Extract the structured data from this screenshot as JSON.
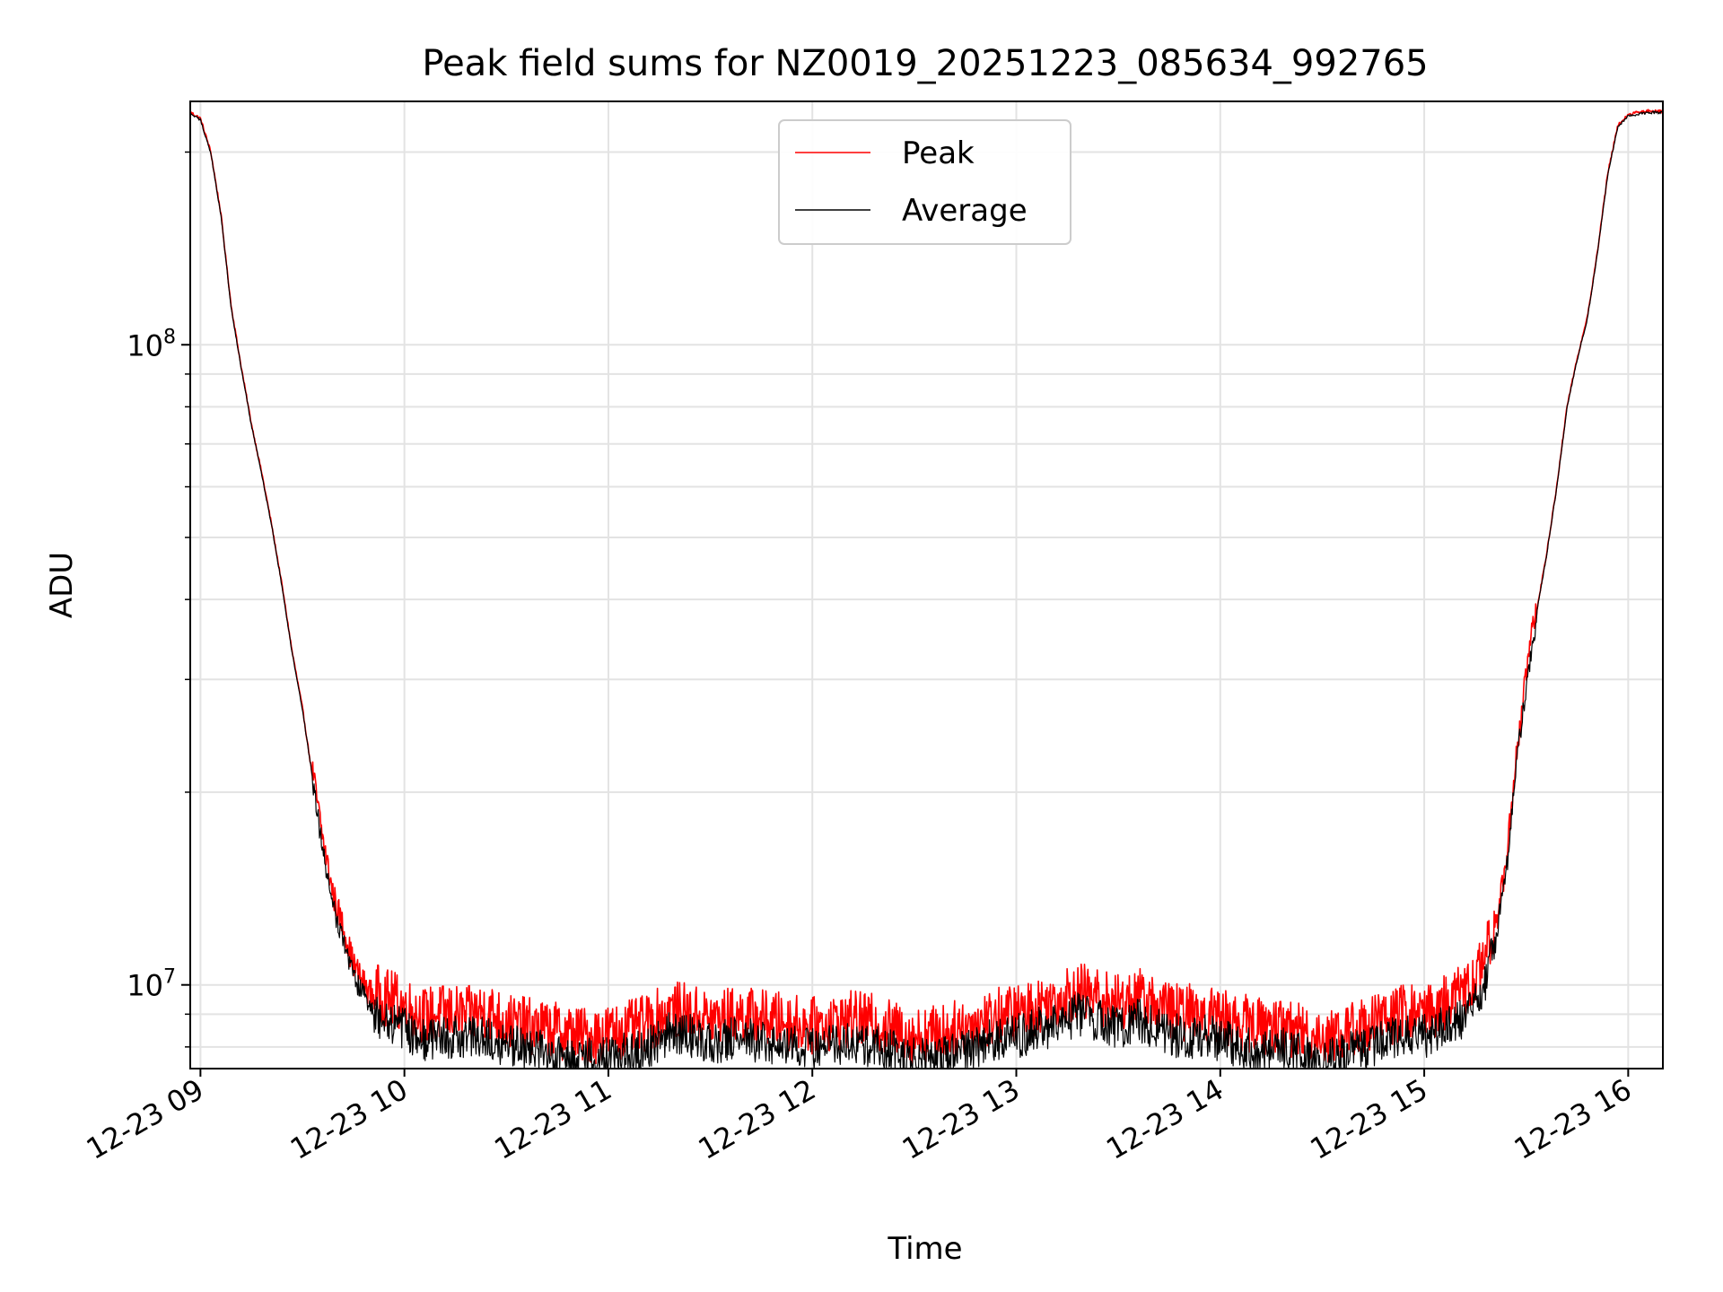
{
  "chart_data": {
    "type": "line",
    "title": "Peak field sums for NZ0019_20251223_085634_992765",
    "xlabel": "Time",
    "ylabel": "ADU",
    "yscale": "log",
    "ylim": [
      7400000,
      240000000
    ],
    "xlim": [
      8.95,
      16.17
    ],
    "grid": true,
    "legend_position": "upper center",
    "x_ticks": [
      {
        "value": 9,
        "label": "12-23 09"
      },
      {
        "value": 10,
        "label": "12-23 10"
      },
      {
        "value": 11,
        "label": "12-23 11"
      },
      {
        "value": 12,
        "label": "12-23 12"
      },
      {
        "value": 13,
        "label": "12-23 13"
      },
      {
        "value": 14,
        "label": "12-23 14"
      },
      {
        "value": 15,
        "label": "12-23 15"
      },
      {
        "value": 16,
        "label": "12-23 16"
      }
    ],
    "y_major_ticks": [
      {
        "value": 10000000,
        "base": "10",
        "exp": "7"
      },
      {
        "value": 100000000,
        "base": "10",
        "exp": "8"
      }
    ],
    "y_minor_ticks": [
      8000000,
      9000000,
      20000000,
      30000000,
      40000000,
      50000000,
      60000000,
      70000000,
      80000000,
      90000000,
      200000000
    ],
    "series": [
      {
        "name": "Peak",
        "color": "#ff0000",
        "noise": 0.09,
        "bias": 0.045,
        "x": [
          8.95,
          9.0,
          9.05,
          9.1,
          9.15,
          9.2,
          9.25,
          9.3,
          9.35,
          9.4,
          9.45,
          9.5,
          9.55,
          9.6,
          9.65,
          9.7,
          9.75,
          9.8,
          9.85,
          9.9,
          9.95,
          10.0,
          10.1,
          10.2,
          10.3,
          10.4,
          10.5,
          10.6,
          10.7,
          10.8,
          10.9,
          11.0,
          11.1,
          11.2,
          11.3,
          11.4,
          11.5,
          11.6,
          11.7,
          11.8,
          11.9,
          12.0,
          12.1,
          12.2,
          12.3,
          12.4,
          12.5,
          12.6,
          12.7,
          12.8,
          12.9,
          13.0,
          13.1,
          13.2,
          13.3,
          13.4,
          13.5,
          13.6,
          13.7,
          13.8,
          13.9,
          14.0,
          14.1,
          14.2,
          14.3,
          14.4,
          14.5,
          14.6,
          14.7,
          14.8,
          14.9,
          15.0,
          15.05,
          15.1,
          15.15,
          15.2,
          15.25,
          15.3,
          15.35,
          15.4,
          15.45,
          15.5,
          15.55,
          15.6,
          15.65,
          15.7,
          15.75,
          15.8,
          15.85,
          15.9,
          15.95,
          16.0,
          16.05,
          16.1,
          16.17
        ],
        "y": [
          230000000,
          225000000,
          200000000,
          160000000,
          115000000,
          92000000,
          75000000,
          63000000,
          52000000,
          42000000,
          33000000,
          27000000,
          21000000,
          16500000,
          13500000,
          12000000,
          10500000,
          9800000,
          9300000,
          9100000,
          9000000,
          8800000,
          8500000,
          8600000,
          8500000,
          8700000,
          8300000,
          8200000,
          8100000,
          8000000,
          7900000,
          8000000,
          8100000,
          8300000,
          8700000,
          8600000,
          8400000,
          8500000,
          8500000,
          8400000,
          8300000,
          8200000,
          8300000,
          8400000,
          8300000,
          8100000,
          7900000,
          8000000,
          8100000,
          8300000,
          8500000,
          8600000,
          8800000,
          9000000,
          9300000,
          9100000,
          8900000,
          9100000,
          8800000,
          8600000,
          8600000,
          8500000,
          8300000,
          8200000,
          8200000,
          8000000,
          7900000,
          8000000,
          8200000,
          8400000,
          8600000,
          8600000,
          8700000,
          8900000,
          9100000,
          9300000,
          9700000,
          10500000,
          12000000,
          15000000,
          22000000,
          30000000,
          38000000,
          47000000,
          60000000,
          80000000,
          95000000,
          110000000,
          140000000,
          185000000,
          220000000,
          228000000,
          230000000,
          231000000,
          231000000
        ]
      },
      {
        "name": "Average",
        "color": "#000000",
        "noise": 0.07,
        "bias": -0.03,
        "x": [
          8.95,
          9.0,
          9.05,
          9.1,
          9.15,
          9.2,
          9.25,
          9.3,
          9.35,
          9.4,
          9.45,
          9.5,
          9.55,
          9.6,
          9.65,
          9.7,
          9.75,
          9.8,
          9.85,
          9.9,
          9.95,
          10.0,
          10.1,
          10.2,
          10.3,
          10.4,
          10.5,
          10.6,
          10.7,
          10.8,
          10.9,
          11.0,
          11.1,
          11.2,
          11.3,
          11.4,
          11.5,
          11.6,
          11.7,
          11.8,
          11.9,
          12.0,
          12.1,
          12.2,
          12.3,
          12.4,
          12.5,
          12.6,
          12.7,
          12.8,
          12.9,
          13.0,
          13.1,
          13.2,
          13.3,
          13.4,
          13.5,
          13.6,
          13.7,
          13.8,
          13.9,
          14.0,
          14.1,
          14.2,
          14.3,
          14.4,
          14.5,
          14.6,
          14.7,
          14.8,
          14.9,
          15.0,
          15.05,
          15.1,
          15.15,
          15.2,
          15.25,
          15.3,
          15.35,
          15.4,
          15.45,
          15.5,
          15.55,
          15.6,
          15.65,
          15.7,
          15.75,
          15.8,
          15.85,
          15.9,
          15.95,
          16.0,
          16.05,
          16.1,
          16.17
        ],
        "y": [
          230000000,
          225000000,
          200000000,
          160000000,
          115000000,
          92000000,
          75000000,
          63000000,
          52000000,
          42000000,
          33000000,
          27000000,
          21000000,
          16500000,
          13500000,
          12000000,
          10500000,
          9800000,
          9300000,
          9100000,
          9000000,
          8800000,
          8500000,
          8600000,
          8500000,
          8700000,
          8300000,
          8200000,
          8100000,
          8000000,
          7900000,
          8000000,
          8100000,
          8300000,
          8700000,
          8600000,
          8400000,
          8500000,
          8500000,
          8400000,
          8300000,
          8200000,
          8300000,
          8400000,
          8300000,
          8100000,
          7900000,
          8000000,
          8100000,
          8300000,
          8500000,
          8600000,
          8800000,
          9000000,
          9300000,
          9100000,
          8900000,
          9100000,
          8800000,
          8600000,
          8600000,
          8500000,
          8300000,
          8200000,
          8200000,
          8000000,
          7900000,
          8000000,
          8200000,
          8400000,
          8600000,
          8600000,
          8700000,
          8900000,
          9100000,
          9300000,
          9700000,
          10500000,
          12000000,
          15000000,
          22000000,
          30000000,
          38000000,
          47000000,
          60000000,
          80000000,
          95000000,
          110000000,
          140000000,
          185000000,
          220000000,
          228000000,
          230000000,
          231000000,
          231000000
        ]
      }
    ]
  }
}
